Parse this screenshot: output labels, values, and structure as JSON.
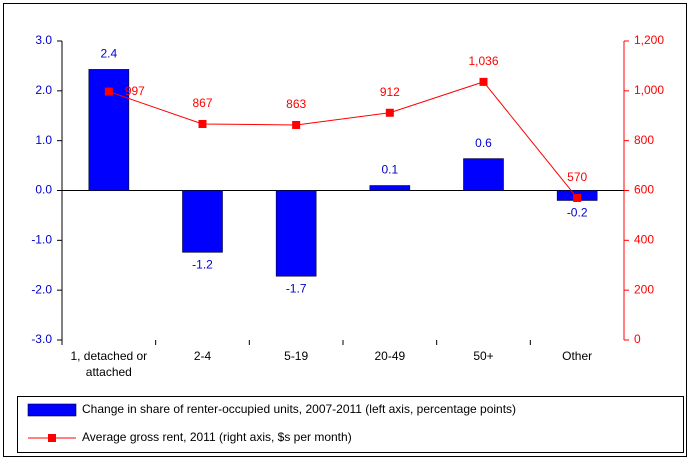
{
  "chart_data": {
    "type": "bar-line",
    "categories": [
      "1, detached or attached",
      "2-4",
      "5-19",
      "20-49",
      "50+",
      "Other"
    ],
    "series": [
      {
        "name": "Change in share of renter-occupied units, 2007-2011 (left axis, percentage points)",
        "type": "bar",
        "color": "#0000ff",
        "values": [
          2.43,
          -1.24,
          -1.72,
          0.1,
          0.64,
          -0.2
        ],
        "value_labels": [
          "2.4",
          "-1.2",
          "-1.7",
          "0.1",
          "0.6",
          "-0.2"
        ]
      },
      {
        "name": "Average gross rent, 2011 (right axis, $s per month)",
        "type": "line",
        "axis": "y2",
        "color": "#ff0000",
        "values": [
          997,
          867,
          863,
          912,
          1036,
          570
        ],
        "value_labels": [
          "997",
          "867",
          "863",
          "912",
          "1,036",
          "570"
        ]
      }
    ],
    "ylim": [
      -3,
      3
    ],
    "yticks": [
      {
        "value": -3,
        "label": "-3.0"
      },
      {
        "value": -2,
        "label": "-2.0"
      },
      {
        "value": -1,
        "label": "-1.0"
      },
      {
        "value": 0,
        "label": "0.0"
      },
      {
        "value": 1,
        "label": "1.0"
      },
      {
        "value": 2,
        "label": "2.0"
      },
      {
        "value": 3,
        "label": "3.0"
      }
    ],
    "y2lim": [
      0,
      1200
    ],
    "y2ticks": [
      0,
      200,
      400,
      600,
      800,
      {
        "value": 1000,
        "label": "1,000"
      },
      {
        "value": 1200,
        "label": "1,200"
      }
    ],
    "grid": false
  }
}
